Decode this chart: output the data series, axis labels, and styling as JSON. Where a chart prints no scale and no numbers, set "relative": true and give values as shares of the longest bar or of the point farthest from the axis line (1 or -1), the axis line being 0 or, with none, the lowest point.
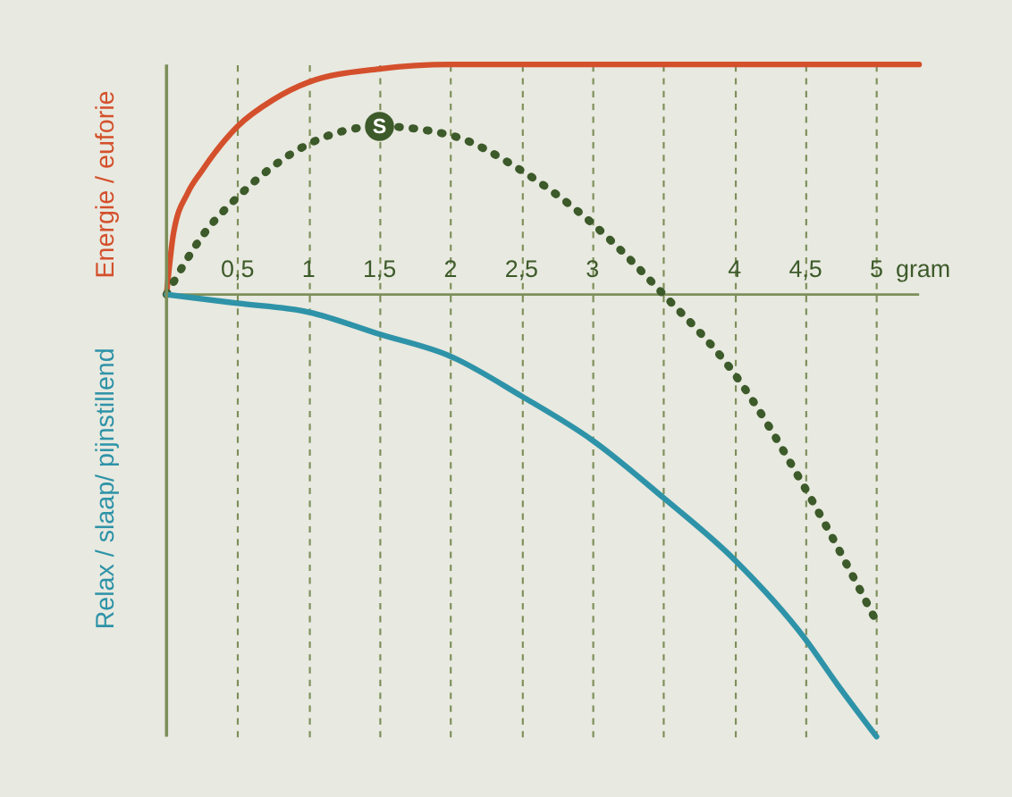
{
  "chart_data": {
    "type": "line",
    "relative": true,
    "xlabel": "gram",
    "xlim": [
      0,
      5.3
    ],
    "xticks": [
      {
        "value": 0.5,
        "label": "0,5"
      },
      1,
      {
        "value": 1.5,
        "label": "1,5"
      },
      2,
      {
        "value": 2.5,
        "label": "2,5"
      },
      3,
      {
        "value": 3.5,
        "label": null
      },
      4,
      {
        "value": 4.5,
        "label": "4,5"
      },
      5
    ],
    "grid": "x",
    "tick_labels": "x",
    "series": [
      {
        "name": "Energie / euforie",
        "color": "#d4502c",
        "line_style": "solid",
        "x": [
          0,
          0.05,
          0.15,
          0.25,
          0.5,
          0.75,
          1,
          1.5,
          2,
          3,
          5.3
        ],
        "values": [
          0,
          0.14,
          0.23,
          0.28,
          0.38,
          0.44,
          0.48,
          0.51,
          0.52,
          0.52,
          0.52
        ]
      },
      {
        "color": "#3d5a2a",
        "line_style": "dotted",
        "x": [
          0,
          0.27,
          0.5,
          1,
          1.5,
          2,
          2.5,
          3,
          3.5,
          4,
          4.5,
          5
        ],
        "values": [
          0,
          0.14,
          0.22,
          0.34,
          0.38,
          0.36,
          0.28,
          0.16,
          0,
          -0.18,
          -0.44,
          -0.74
        ]
      },
      {
        "name": "Relax / slaap/ pijnstillend",
        "color": "#2e93a8",
        "line_style": "solid",
        "x": [
          0,
          0.5,
          1,
          1.5,
          2,
          2.5,
          3,
          3.5,
          4,
          4.5,
          4.72,
          5
        ],
        "values": [
          0,
          -0.02,
          -0.04,
          -0.09,
          -0.14,
          -0.23,
          -0.33,
          -0.46,
          -0.6,
          -0.78,
          -0.88,
          -1
        ]
      }
    ],
    "annotations": [
      {
        "text": "S",
        "x": 1.5,
        "y": 0.38
      }
    ]
  }
}
